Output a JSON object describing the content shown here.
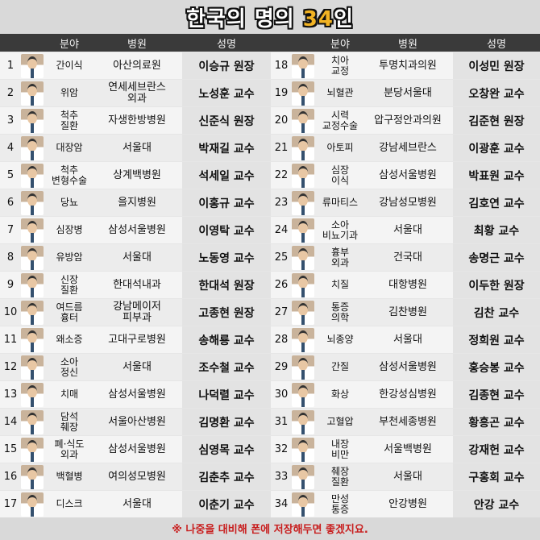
{
  "title": {
    "text_main": "한국의 명의 ",
    "text_highlight": "34",
    "text_suffix": "인"
  },
  "headers": {
    "field": "분야",
    "hospital": "병원",
    "doctor": "성명"
  },
  "left_rows": [
    {
      "num": "1",
      "field": "간이식",
      "hospital": "아산의료원",
      "doctor": "이승규 원장"
    },
    {
      "num": "2",
      "field": "위암",
      "hospital": "연세세브란스\n외과",
      "doctor": "노성훈 교수"
    },
    {
      "num": "3",
      "field": "척추\n질환",
      "hospital": "자생한방병원",
      "doctor": "신준식 원장"
    },
    {
      "num": "4",
      "field": "대장암",
      "hospital": "서울대",
      "doctor": "박재길 교수"
    },
    {
      "num": "5",
      "field": "척추\n변형수술",
      "hospital": "상계백병원",
      "doctor": "석세일 교수"
    },
    {
      "num": "6",
      "field": "당뇨",
      "hospital": "을지병원",
      "doctor": "이홍규 교수"
    },
    {
      "num": "7",
      "field": "심장병",
      "hospital": "삼성서울병원",
      "doctor": "이영탁 교수"
    },
    {
      "num": "8",
      "field": "유방암",
      "hospital": "서울대",
      "doctor": "노동영 교수"
    },
    {
      "num": "9",
      "field": "신장\n질환",
      "hospital": "한대석내과",
      "doctor": "한대석 원장"
    },
    {
      "num": "10",
      "field": "여드름\n흉터",
      "hospital": "강남메이저\n피부과",
      "doctor": "고종현 원장"
    },
    {
      "num": "11",
      "field": "왜소증",
      "hospital": "고대구로병원",
      "doctor": "송해룡 교수"
    },
    {
      "num": "12",
      "field": "소아\n정신",
      "hospital": "서울대",
      "doctor": "조수철 교수"
    },
    {
      "num": "13",
      "field": "치매",
      "hospital": "삼성서울병원",
      "doctor": "나덕렬 교수"
    },
    {
      "num": "14",
      "field": "담석\n췌장",
      "hospital": "서울아산병원",
      "doctor": "김명환 교수"
    },
    {
      "num": "15",
      "field": "폐·식도\n외과",
      "hospital": "삼성서울병원",
      "doctor": "심영목 교수"
    },
    {
      "num": "16",
      "field": "백혈병",
      "hospital": "여의성모병원",
      "doctor": "김춘추 교수"
    },
    {
      "num": "17",
      "field": "디스크",
      "hospital": "서울대",
      "doctor": "이춘기 교수"
    }
  ],
  "right_rows": [
    {
      "num": "18",
      "field": "치아\n교정",
      "hospital": "투명치과의원",
      "doctor": "이성민 원장"
    },
    {
      "num": "19",
      "field": "뇌혈관",
      "hospital": "분당서울대",
      "doctor": "오창완 교수"
    },
    {
      "num": "20",
      "field": "시력\n교정수술",
      "hospital": "압구정안과의원",
      "doctor": "김준현 원장"
    },
    {
      "num": "21",
      "field": "아토피",
      "hospital": "강남세브란스",
      "doctor": "이광훈 교수"
    },
    {
      "num": "22",
      "field": "심장\n이식",
      "hospital": "삼성서울병원",
      "doctor": "박표원 교수"
    },
    {
      "num": "23",
      "field": "류마티스",
      "hospital": "강남성모병원",
      "doctor": "김호연 교수"
    },
    {
      "num": "24",
      "field": "소아\n비뇨기과",
      "hospital": "서울대",
      "doctor": "최황 교수"
    },
    {
      "num": "25",
      "field": "흉부\n외과",
      "hospital": "건국대",
      "doctor": "송명근 교수"
    },
    {
      "num": "26",
      "field": "치질",
      "hospital": "대항병원",
      "doctor": "이두한 원장"
    },
    {
      "num": "27",
      "field": "통증\n의학",
      "hospital": "김찬병원",
      "doctor": "김찬 교수"
    },
    {
      "num": "28",
      "field": "뇌종양",
      "hospital": "서울대",
      "doctor": "정희원 교수"
    },
    {
      "num": "29",
      "field": "간질",
      "hospital": "삼성서울병원",
      "doctor": "홍승봉 교수"
    },
    {
      "num": "30",
      "field": "화상",
      "hospital": "한강성심병원",
      "doctor": "김종현 교수"
    },
    {
      "num": "31",
      "field": "고혈압",
      "hospital": "부천세종병원",
      "doctor": "황흥곤 교수"
    },
    {
      "num": "32",
      "field": "내장\n비만",
      "hospital": "서울백병원",
      "doctor": "강재헌 교수"
    },
    {
      "num": "33",
      "field": "췌장\n질환",
      "hospital": "서울대",
      "doctor": "구홍회 교수"
    },
    {
      "num": "34",
      "field": "만성\n통증",
      "hospital": "안강병원",
      "doctor": "안강 교수"
    }
  ],
  "footer": "※ 나중을 대비해 폰에 저장해두면 좋겠지요."
}
